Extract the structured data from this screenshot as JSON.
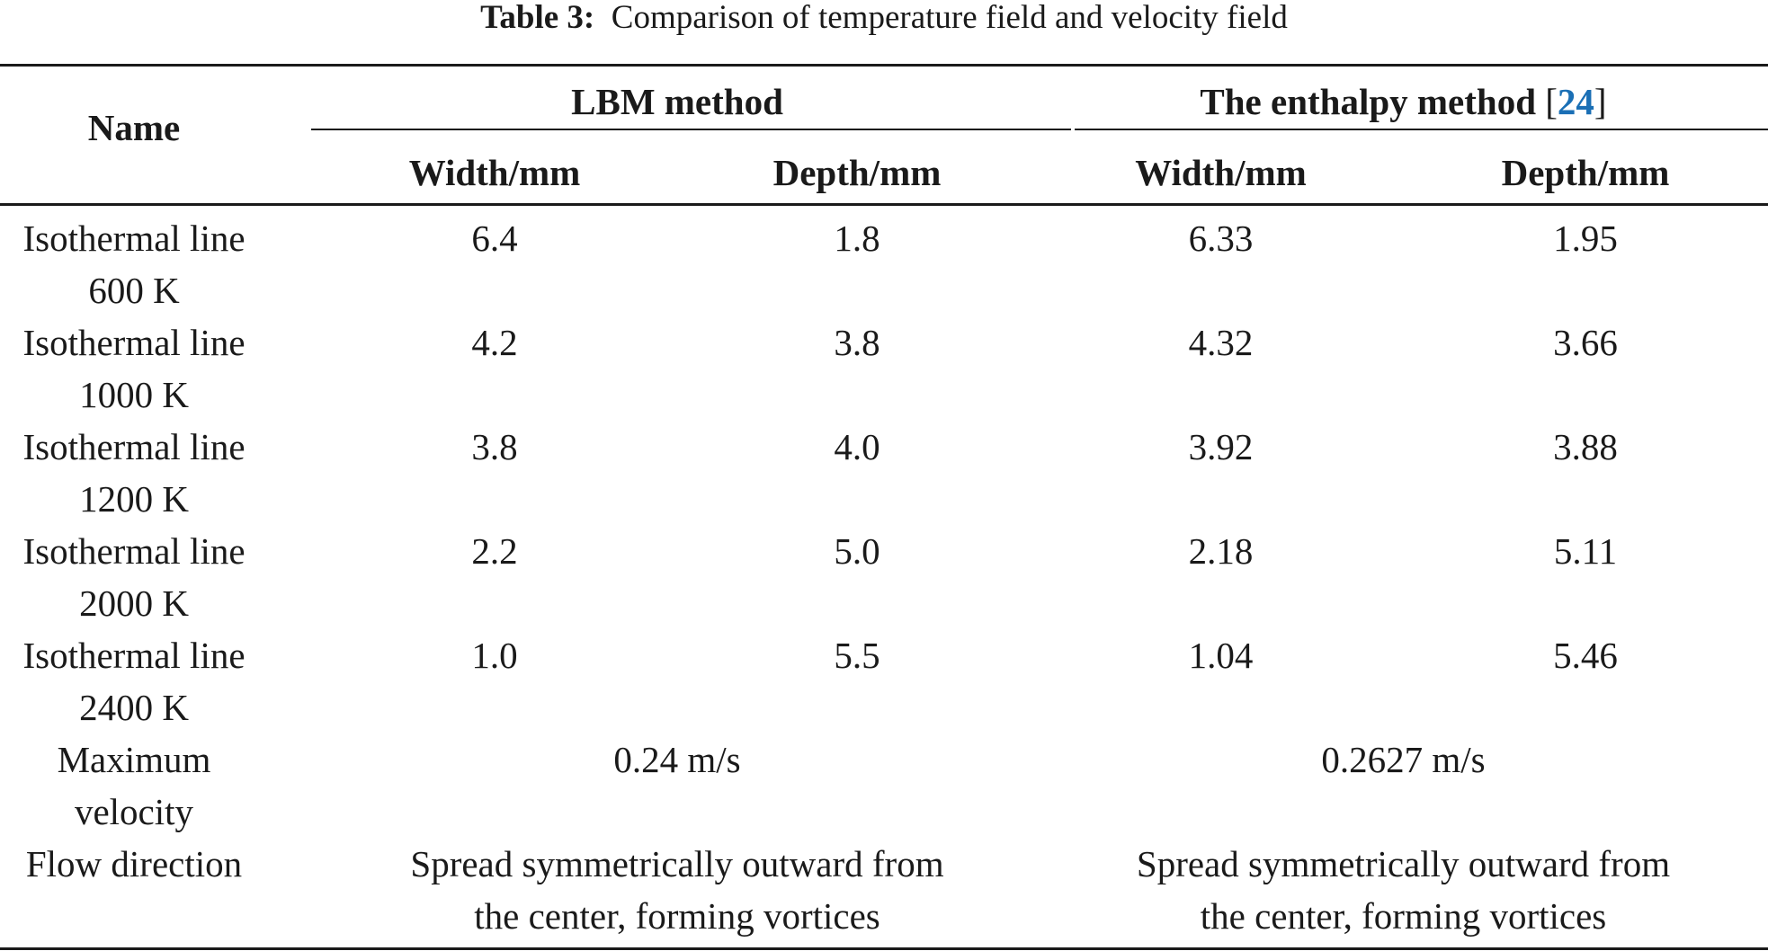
{
  "caption": {
    "label": "Table 3:",
    "text": "Comparison of temperature field and velocity field"
  },
  "header": {
    "name": "Name",
    "group1": "LBM method",
    "group2_text": "The enthalpy method",
    "group2_bracket_open": "[",
    "group2_ref": "24",
    "group2_bracket_close": "]",
    "sub": [
      "Width/mm",
      "Depth/mm",
      "Width/mm",
      "Depth/mm"
    ]
  },
  "rows": [
    {
      "name1": "Isothermal line",
      "name2": "600 K",
      "values": [
        "6.4",
        "1.8",
        "6.33",
        "1.95"
      ]
    },
    {
      "name1": "Isothermal line",
      "name2": "1000 K",
      "values": [
        "4.2",
        "3.8",
        "4.32",
        "3.66"
      ]
    },
    {
      "name1": "Isothermal line",
      "name2": "1200 K",
      "values": [
        "3.8",
        "4.0",
        "3.92",
        "3.88"
      ]
    },
    {
      "name1": "Isothermal line",
      "name2": "2000 K",
      "values": [
        "2.2",
        "5.0",
        "2.18",
        "5.11"
      ]
    },
    {
      "name1": "Isothermal line",
      "name2": "2400 K",
      "values": [
        "1.0",
        "5.5",
        "1.04",
        "5.46"
      ]
    }
  ],
  "max_velocity": {
    "name1": "Maximum",
    "name2": "velocity",
    "lbm": "0.24 m/s",
    "enthalpy": "0.2627 m/s"
  },
  "flow_direction": {
    "name": "Flow direction",
    "lbm_line1": "Spread symmetrically outward from",
    "lbm_line2": "the center, forming vortices",
    "enthalpy_line1": "Spread symmetrically outward from",
    "enthalpy_line2": "the center, forming vortices"
  }
}
